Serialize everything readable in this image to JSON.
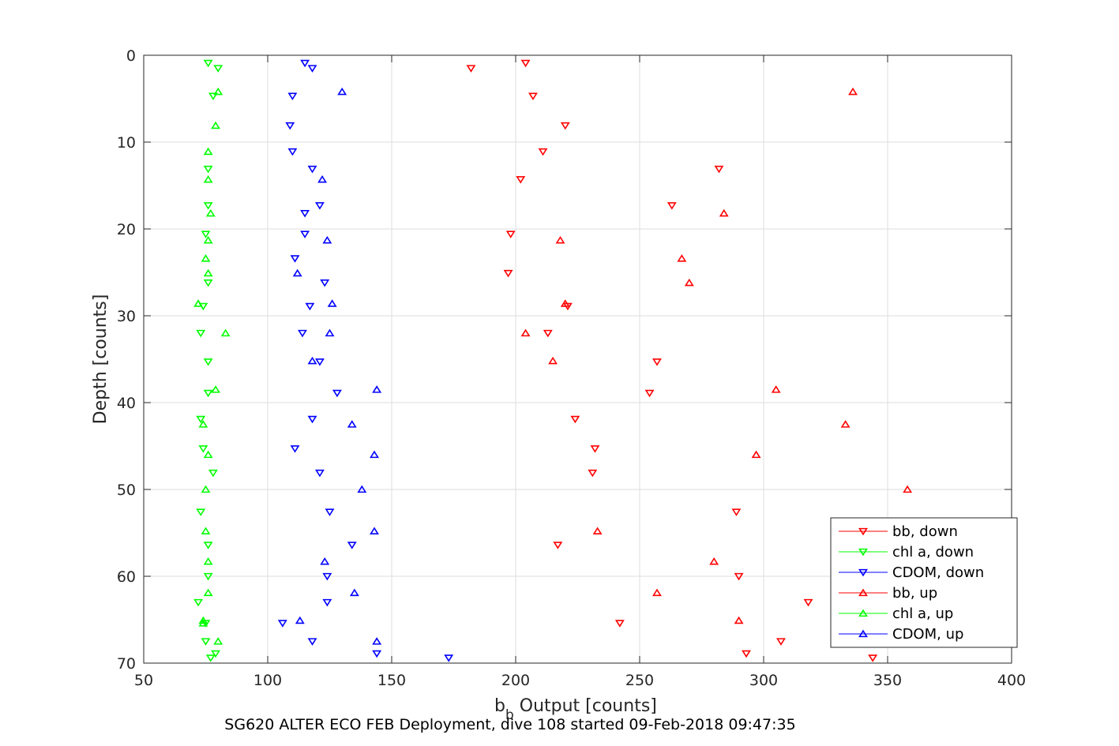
{
  "chart_data": {
    "type": "scatter",
    "xlabel_main": "b",
    "xlabel_sub": "b",
    "xlabel_rest": " Output [counts]",
    "ylabel": "Depth [counts]",
    "caption": "SG620 ALTER ECO FEB Deployment, dive 108 started 09-Feb-2018 09:47:35",
    "xlim": [
      50,
      400
    ],
    "ylim": [
      0,
      70
    ],
    "y_reversed": true,
    "xticks": [
      50,
      100,
      150,
      200,
      250,
      300,
      350,
      400
    ],
    "yticks": [
      0,
      10,
      20,
      30,
      40,
      50,
      60,
      70
    ],
    "grid": true,
    "legend_position": "bottom-right",
    "series": [
      {
        "name": "bb, down",
        "color": "#ff0000",
        "marker": "triangle-down",
        "x": [
          204,
          182,
          207,
          220,
          211,
          282,
          202,
          263,
          198,
          197,
          221,
          213,
          257,
          254,
          224,
          232,
          231,
          289,
          217,
          290,
          318,
          242,
          307,
          293,
          344
        ],
        "y": [
          0.9,
          1.5,
          4.7,
          8.1,
          11.1,
          13.1,
          14.3,
          17.3,
          20.6,
          25.1,
          28.9,
          32.0,
          35.3,
          38.9,
          41.9,
          45.3,
          48.1,
          52.6,
          56.4,
          60.0,
          63.0,
          65.4,
          67.5,
          68.9,
          69.4
        ]
      },
      {
        "name": "chl a, down",
        "color": "#00ff00",
        "marker": "triangle-down",
        "x": [
          76,
          80,
          78,
          76,
          76,
          75,
          76,
          74,
          73,
          76,
          76,
          73,
          74,
          78,
          73,
          76,
          76,
          72,
          75,
          75,
          79,
          77
        ],
        "y": [
          0.9,
          1.5,
          4.7,
          13.1,
          17.3,
          20.6,
          26.2,
          28.9,
          32.0,
          35.3,
          38.9,
          41.9,
          45.3,
          48.1,
          52.6,
          56.4,
          60.0,
          63.0,
          65.4,
          67.5,
          68.9,
          69.4
        ]
      },
      {
        "name": "CDOM, down",
        "color": "#0000ff",
        "marker": "triangle-down",
        "x": [
          115,
          118,
          110,
          109,
          110,
          118,
          121,
          115,
          115,
          111,
          123,
          117,
          114,
          121,
          128,
          118,
          111,
          121,
          125,
          134,
          124,
          124,
          106,
          118,
          144,
          173
        ],
        "y": [
          0.9,
          1.5,
          4.7,
          8.1,
          11.1,
          13.1,
          17.3,
          18.2,
          20.6,
          23.4,
          26.2,
          28.9,
          32.0,
          35.3,
          38.9,
          41.9,
          45.3,
          48.1,
          52.6,
          56.4,
          60.0,
          63.0,
          65.4,
          67.5,
          68.9,
          69.4
        ]
      },
      {
        "name": "bb, up",
        "color": "#ff0000",
        "marker": "triangle-up",
        "x": [
          336,
          284,
          218,
          267,
          270,
          220,
          204,
          215,
          305,
          333,
          297,
          358,
          233,
          280,
          257,
          290
        ],
        "y": [
          4.2,
          18.2,
          21.3,
          23.4,
          26.2,
          28.6,
          32.0,
          35.2,
          38.5,
          42.5,
          46.0,
          50.0,
          54.8,
          58.3,
          61.9,
          65.1
        ]
      },
      {
        "name": "chl a, up",
        "color": "#00ff00",
        "marker": "triangle-up",
        "x": [
          80,
          79,
          76,
          76,
          77,
          76,
          75,
          76,
          72,
          83,
          79,
          74,
          76,
          75,
          75,
          76,
          76,
          74,
          74,
          80
        ],
        "y": [
          4.2,
          8.1,
          11.1,
          14.3,
          18.2,
          21.3,
          23.4,
          25.1,
          28.6,
          32.0,
          38.5,
          42.5,
          46.0,
          50.0,
          54.8,
          58.3,
          61.9,
          65.1,
          65.4,
          67.5
        ]
      },
      {
        "name": "CDOM, up",
        "color": "#0000ff",
        "marker": "triangle-up",
        "x": [
          130,
          122,
          124,
          112,
          126,
          125,
          118,
          144,
          134,
          143,
          138,
          143,
          123,
          135,
          113,
          144
        ],
        "y": [
          4.2,
          14.3,
          21.3,
          25.1,
          28.6,
          32.0,
          35.2,
          38.5,
          42.5,
          46.0,
          50.0,
          54.8,
          58.3,
          61.9,
          65.1,
          67.5
        ]
      }
    ]
  }
}
